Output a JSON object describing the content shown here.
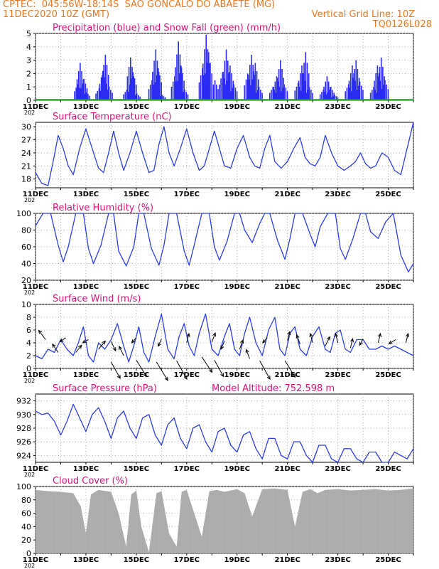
{
  "header": {
    "line1": "CPTEC:  045:56W-18:14S  SAO GONCALO DO ABAETE (MG)",
    "date": "11DEC2020 10Z (GMT)",
    "grid_note": "Vertical Grid Line: 10Z",
    "code": "TQ0126L028"
  },
  "x_tick_labels": [
    "11DEC",
    "13DEC",
    "15DEC",
    "17DEC",
    "19DEC",
    "21DEC",
    "23DEC",
    "25DEC"
  ],
  "x_axis_year_fragment": "202",
  "colors": {
    "header": "#e87722",
    "panel_title": "#e0107a",
    "line": "#2b3ee6",
    "precip": "#2b2bf5",
    "snow": "#1fa01f",
    "cloud": "#a9a9a9",
    "grid": "#9a9a9a"
  },
  "chart_data": [
    {
      "type": "bar",
      "title": "Precipitation (blue) and Snow Fall (green) (mm/h)",
      "ylim": [
        0,
        5
      ],
      "yticks": [
        0,
        1,
        2,
        3,
        4,
        5
      ],
      "series": [
        {
          "name": "Precipitation",
          "color": "#2b2bf5",
          "x": [
            1.65,
            1.75,
            1.9,
            2.0,
            2.5,
            2.65,
            2.75,
            2.9,
            3.6,
            3.75,
            3.85,
            4.0,
            4.6,
            4.75,
            4.85,
            5.0,
            5.5,
            5.65,
            5.75,
            5.9,
            6.6,
            6.75,
            6.85,
            7.1,
            7.4,
            7.55,
            7.7,
            7.85,
            8.4,
            8.55,
            8.7,
            8.85,
            9.4,
            9.55,
            9.7,
            9.85,
            10.4,
            10.55,
            10.7,
            10.85,
            11.4,
            11.55,
            11.7,
            11.85,
            12.4,
            12.55,
            12.7,
            12.85,
            13.4,
            13.55,
            13.7,
            13.85
          ],
          "values": [
            1.2,
            2.8,
            1.6,
            0.6,
            0.9,
            2.2,
            3.4,
            1.0,
            0.8,
            3.2,
            2.1,
            0.5,
            1.5,
            3.8,
            2.4,
            0.4,
            1.8,
            4.4,
            2.6,
            0.8,
            2.4,
            4.9,
            3.6,
            1.5,
            2.1,
            3.8,
            2.6,
            1.2,
            2.0,
            3.4,
            2.8,
            1.0,
            1.0,
            1.8,
            3.0,
            1.2,
            1.3,
            2.6,
            3.6,
            1.0,
            0.8,
            1.8,
            1.0,
            0.4,
            1.2,
            2.6,
            3.0,
            1.4,
            1.0,
            2.6,
            3.2,
            1.5
          ]
        },
        {
          "name": "Snow Fall",
          "color": "#1fa01f",
          "values": [
            0
          ]
        }
      ]
    },
    {
      "type": "line",
      "title": "Surface Temperature (nC)",
      "ylim": [
        16,
        31
      ],
      "yticks": [
        18,
        21,
        24,
        27,
        30
      ],
      "x": [
        0,
        0.25,
        0.5,
        0.7,
        0.9,
        1.1,
        1.3,
        1.5,
        1.75,
        2.0,
        2.25,
        2.5,
        2.7,
        2.9,
        3.1,
        3.3,
        3.5,
        3.75,
        4.0,
        4.25,
        4.5,
        4.7,
        4.9,
        5.1,
        5.3,
        5.5,
        5.75,
        6.0,
        6.25,
        6.5,
        6.7,
        6.9,
        7.1,
        7.3,
        7.5,
        7.75,
        8.0,
        8.25,
        8.5,
        8.7,
        8.9,
        9.1,
        9.3,
        9.5,
        9.75,
        10.0,
        10.25,
        10.5,
        10.7,
        10.9,
        11.1,
        11.3,
        11.5,
        11.75,
        12.0,
        12.25,
        12.5,
        12.7,
        12.9,
        13.1,
        13.3,
        13.5,
        13.75,
        14.0,
        14.25,
        14.5,
        14.75,
        15.0
      ],
      "values": [
        19.5,
        17,
        16.5,
        22,
        28,
        25,
        21,
        19,
        25,
        29.5,
        25,
        20.5,
        19.5,
        24,
        29,
        24,
        20,
        24,
        29,
        24,
        19.5,
        20,
        26,
        30,
        24,
        21,
        25,
        29.5,
        24,
        20,
        21,
        25,
        29,
        25,
        21,
        20.5,
        25,
        28,
        23,
        21,
        20.5,
        25,
        28,
        22,
        20.5,
        22,
        25,
        27.5,
        23,
        21.5,
        21,
        23,
        28,
        24,
        21,
        20,
        21,
        22,
        24,
        21.5,
        20.5,
        21,
        24,
        23,
        20,
        19,
        25,
        31
      ]
    },
    {
      "type": "line",
      "title": "Relative Humidity (%)",
      "ylim": [
        20,
        100
      ],
      "yticks": [
        20,
        40,
        60,
        80,
        100
      ],
      "x": [
        0,
        0.3,
        0.6,
        0.9,
        1.1,
        1.3,
        1.6,
        1.9,
        2.1,
        2.3,
        2.6,
        2.9,
        3.1,
        3.3,
        3.6,
        3.9,
        4.1,
        4.3,
        4.6,
        4.9,
        5.1,
        5.3,
        5.6,
        5.9,
        6.1,
        6.3,
        6.6,
        6.9,
        7.1,
        7.3,
        7.6,
        7.9,
        8.1,
        8.3,
        8.6,
        8.9,
        9.1,
        9.3,
        9.6,
        9.9,
        10.1,
        10.3,
        10.6,
        10.9,
        11.1,
        11.3,
        11.6,
        11.9,
        12.1,
        12.3,
        12.6,
        12.9,
        13.1,
        13.3,
        13.6,
        13.9,
        14.2,
        14.5,
        14.8,
        15.0
      ],
      "values": [
        85,
        100,
        100,
        62,
        42,
        60,
        100,
        100,
        58,
        40,
        62,
        100,
        100,
        55,
        37,
        60,
        100,
        100,
        58,
        38,
        62,
        100,
        100,
        55,
        38,
        62,
        100,
        100,
        60,
        44,
        66,
        100,
        100,
        80,
        65,
        88,
        100,
        100,
        68,
        45,
        70,
        100,
        100,
        75,
        60,
        84,
        100,
        100,
        58,
        45,
        70,
        100,
        100,
        78,
        70,
        90,
        100,
        50,
        30,
        40
      ]
    },
    {
      "type": "line",
      "title": "Surface Wind (m/s)",
      "ylim": [
        0,
        10
      ],
      "yticks": [
        0,
        2,
        4,
        6,
        8,
        10
      ],
      "x": [
        0,
        0.25,
        0.5,
        0.75,
        1.0,
        1.25,
        1.5,
        1.7,
        1.9,
        2.1,
        2.3,
        2.5,
        2.75,
        3.0,
        3.25,
        3.5,
        3.7,
        3.9,
        4.1,
        4.3,
        4.5,
        4.75,
        5.0,
        5.25,
        5.5,
        5.7,
        5.9,
        6.1,
        6.3,
        6.5,
        6.75,
        7.0,
        7.25,
        7.5,
        7.7,
        7.9,
        8.1,
        8.3,
        8.5,
        8.75,
        9.0,
        9.25,
        9.5,
        9.7,
        9.9,
        10.1,
        10.3,
        10.5,
        10.75,
        11.0,
        11.25,
        11.5,
        11.7,
        11.9,
        12.1,
        12.3,
        12.5,
        12.75,
        13.0,
        13.25,
        13.5,
        13.75,
        14.0,
        14.25,
        14.5,
        14.75,
        15.0
      ],
      "values": [
        2,
        1.5,
        3,
        2.5,
        4.5,
        3,
        2,
        4,
        6.5,
        2,
        1,
        4,
        3,
        4.5,
        7,
        3.5,
        1,
        3.5,
        6.5,
        2.5,
        1,
        5,
        8.5,
        3,
        1.5,
        5,
        7,
        3.5,
        2,
        5.5,
        8.5,
        3,
        2,
        5,
        7,
        3,
        2,
        5.5,
        8,
        4,
        2,
        6,
        8,
        3,
        2,
        5.5,
        6.5,
        3,
        2,
        5,
        6.5,
        3,
        2.5,
        5.5,
        6,
        3,
        2.5,
        4.5,
        4.5,
        3,
        3,
        3.5,
        3,
        3.5,
        3,
        2.5,
        2
      ]
    },
    {
      "type": "line",
      "title": "Surface Pressure (hPa)",
      "annotation": "Model Altitude: 752.598 m",
      "ylim": [
        923,
        933
      ],
      "yticks": [
        924,
        926,
        928,
        930,
        932
      ],
      "x": [
        0,
        0.25,
        0.5,
        0.75,
        1.0,
        1.25,
        1.5,
        1.75,
        2.0,
        2.25,
        2.5,
        2.75,
        3.0,
        3.25,
        3.5,
        3.75,
        4.0,
        4.25,
        4.5,
        4.75,
        5.0,
        5.25,
        5.5,
        5.75,
        6.0,
        6.25,
        6.5,
        6.75,
        7.0,
        7.25,
        7.5,
        7.75,
        8.0,
        8.25,
        8.5,
        8.75,
        9.0,
        9.25,
        9.5,
        9.75,
        10.0,
        10.25,
        10.5,
        10.75,
        11.0,
        11.25,
        11.5,
        11.75,
        12.0,
        12.25,
        12.5,
        12.75,
        13.0,
        13.25,
        13.5,
        13.75,
        14.0,
        14.25,
        14.5,
        14.75,
        15.0
      ],
      "values": [
        930.5,
        930,
        930.2,
        929,
        927,
        929,
        931.5,
        929.5,
        927.5,
        930,
        931,
        929,
        926.5,
        929.5,
        930.5,
        928,
        926.5,
        929.5,
        930,
        927,
        925.5,
        928.5,
        929.5,
        926.5,
        925,
        928,
        928.5,
        926,
        924.5,
        927.5,
        928,
        925.5,
        924.5,
        927,
        927.5,
        925,
        923.5,
        926.5,
        926.5,
        924,
        923.5,
        926,
        926,
        924,
        923,
        925.5,
        925.5,
        923.5,
        923,
        925,
        925,
        923.5,
        923,
        924.5,
        924.5,
        923,
        923,
        924.5,
        924,
        923.5,
        925
      ]
    },
    {
      "type": "bar",
      "title": "Cloud Cover (%)",
      "ylim": [
        0,
        100
      ],
      "yticks": [
        0,
        20,
        40,
        60,
        80,
        100
      ],
      "series": [
        {
          "name": "Cloud Cover",
          "color": "#a9a9a9",
          "fill": "area"
        }
      ],
      "x": [
        0,
        0.5,
        1.0,
        1.5,
        1.8,
        2.0,
        2.2,
        2.5,
        3.0,
        3.3,
        3.6,
        3.8,
        4.0,
        4.2,
        4.5,
        4.8,
        5.0,
        5.3,
        5.6,
        5.8,
        6.0,
        6.3,
        6.6,
        6.9,
        7.2,
        7.5,
        8.0,
        8.3,
        8.6,
        9.0,
        9.5,
        10.0,
        10.3,
        10.6,
        10.9,
        11.2,
        11.5,
        12.0,
        12.5,
        13.0,
        13.5,
        14.0,
        14.5,
        15.0
      ],
      "values": [
        95,
        93,
        92,
        90,
        70,
        30,
        88,
        95,
        92,
        60,
        10,
        88,
        94,
        40,
        2,
        90,
        93,
        30,
        10,
        92,
        95,
        60,
        25,
        93,
        95,
        92,
        96,
        90,
        55,
        96,
        97,
        95,
        40,
        92,
        96,
        90,
        95,
        96,
        94,
        95,
        96,
        94,
        95,
        97
      ]
    }
  ]
}
